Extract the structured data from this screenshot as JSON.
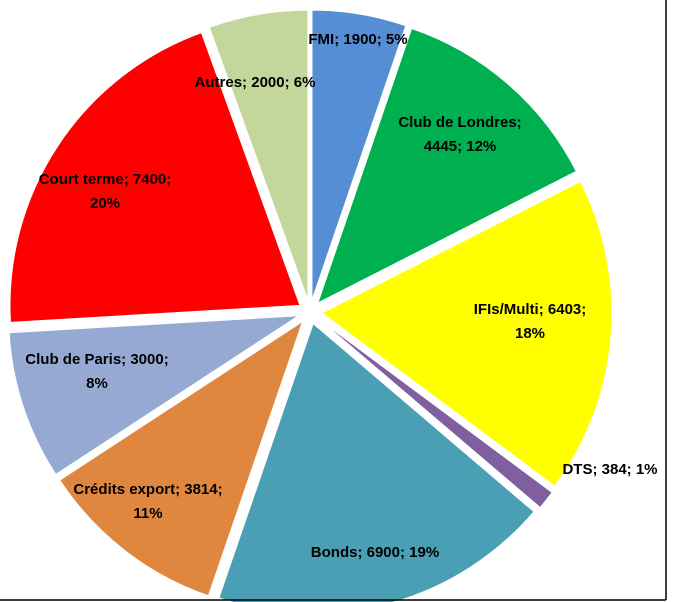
{
  "chart_data": {
    "type": "pie",
    "values": [
      1900,
      4445,
      6403,
      384,
      6900,
      3814,
      3000,
      7400,
      2000
    ],
    "value_labels": [
      "FMI; 1900; 5%",
      "Club de Londres; 4445; 12%",
      "IFIs/Multi; 6403; 18%",
      "DTS; 384; 1%",
      "Bonds; 6900; 19%",
      "Crédits export; 3814; 11%",
      "Club de Paris; 3000; 8%",
      "Court terme; 7400; 20%",
      "Autres; 2000; 6%"
    ],
    "colors": [
      "#558ed5",
      "#00b050",
      "#ffff00",
      "#7f5fa0",
      "#4a9fb5",
      "#e0873f",
      "#95a9d2",
      "#ff0000",
      "#c3d69b"
    ]
  }
}
